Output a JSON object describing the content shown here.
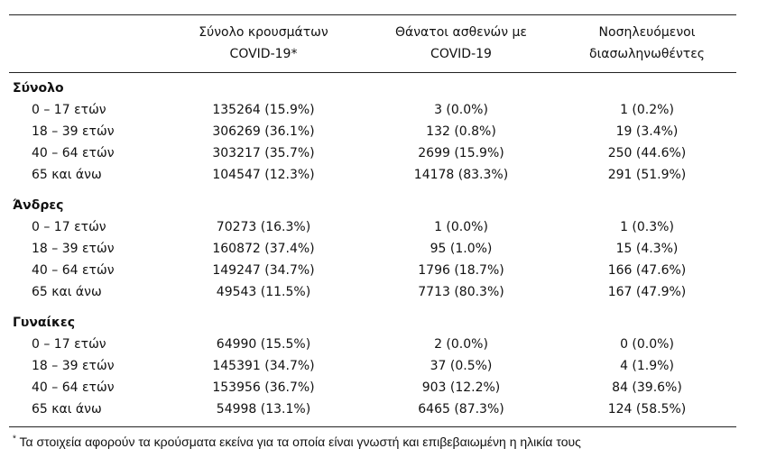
{
  "headers": {
    "cases": [
      "Σύνολο κρουσμάτων",
      "COVID-19*"
    ],
    "deaths": [
      "Θάνατοι ασθενών με",
      "COVID-19"
    ],
    "intubated": [
      "Νοσηλευόμενοι",
      "διασωληνωθέντες"
    ]
  },
  "sections": [
    {
      "title": "Σύνολο",
      "rows": [
        {
          "age": "0 – 17 ετών",
          "cases": "135264 (15.9%)",
          "deaths": "3 (0.0%)",
          "intubated": "1 (0.2%)"
        },
        {
          "age": "18 – 39 ετών",
          "cases": "306269 (36.1%)",
          "deaths": "132 (0.8%)",
          "intubated": "19 (3.4%)"
        },
        {
          "age": "40 – 64 ετών",
          "cases": "303217 (35.7%)",
          "deaths": "2699 (15.9%)",
          "intubated": "250 (44.6%)"
        },
        {
          "age": "65 και άνω",
          "cases": "104547 (12.3%)",
          "deaths": "14178 (83.3%)",
          "intubated": "291 (51.9%)"
        }
      ]
    },
    {
      "title": "Άνδρες",
      "rows": [
        {
          "age": "0 – 17 ετών",
          "cases": "70273 (16.3%)",
          "deaths": "1 (0.0%)",
          "intubated": "1 (0.3%)"
        },
        {
          "age": "18 – 39 ετών",
          "cases": "160872 (37.4%)",
          "deaths": "95 (1.0%)",
          "intubated": "15 (4.3%)"
        },
        {
          "age": "40 – 64 ετών",
          "cases": "149247 (34.7%)",
          "deaths": "1796 (18.7%)",
          "intubated": "166 (47.6%)"
        },
        {
          "age": "65 και άνω",
          "cases": "49543 (11.5%)",
          "deaths": "7713 (80.3%)",
          "intubated": "167 (47.9%)"
        }
      ]
    },
    {
      "title": "Γυναίκες",
      "rows": [
        {
          "age": "0 – 17 ετών",
          "cases": "64990 (15.5%)",
          "deaths": "2 (0.0%)",
          "intubated": "0 (0.0%)"
        },
        {
          "age": "18 – 39 ετών",
          "cases": "145391 (34.7%)",
          "deaths": "37 (0.5%)",
          "intubated": "4 (1.9%)"
        },
        {
          "age": "40 – 64 ετών",
          "cases": "153956 (36.7%)",
          "deaths": "903 (12.2%)",
          "intubated": "84 (39.6%)"
        },
        {
          "age": "65 και άνω",
          "cases": "54998 (13.1%)",
          "deaths": "6465 (87.3%)",
          "intubated": "124 (58.5%)"
        }
      ]
    }
  ],
  "footnote": {
    "marker": "*",
    "text": " Τα στοιχεία αφορούν τα κρούσματα εκείνα για τα οποία είναι γνωστή και επιβεβαιωμένη η ηλικία τους"
  }
}
